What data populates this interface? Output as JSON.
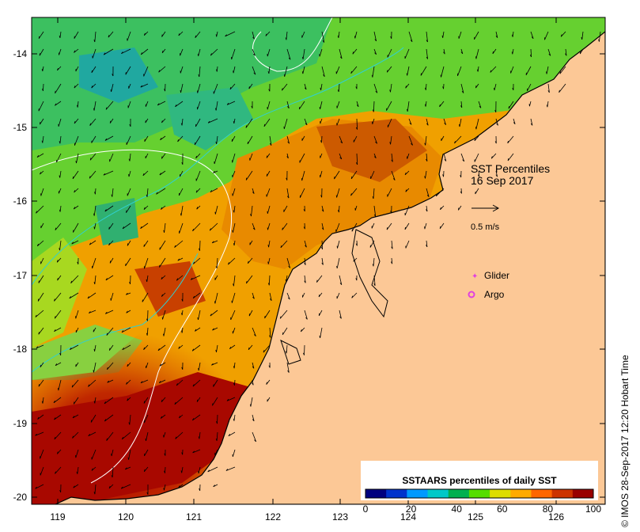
{
  "title": "SST Percentiles",
  "date": "16 Sep 2017",
  "scale_label": "0.5 m/s",
  "legend_items": [
    {
      "label": "Glider",
      "color": "#e040e0"
    },
    {
      "label": "Argo",
      "color": "#e040e0"
    }
  ],
  "colorbar": {
    "title": "SSTAARS percentiles of daily SST",
    "ticks": [
      "0",
      "20",
      "40",
      "60",
      "80",
      "100"
    ],
    "colors": [
      "#00007f",
      "#0033cc",
      "#0099ff",
      "#00c8c8",
      "#00b050",
      "#55dd00",
      "#dddd00",
      "#ffaa00",
      "#ff6600",
      "#cc3300",
      "#990000"
    ]
  },
  "axes": {
    "x_ticks": [
      "119",
      "120",
      "121",
      "122",
      "123",
      "124",
      "125",
      "126"
    ],
    "y_ticks": [
      "-14",
      "-15",
      "-16",
      "-17",
      "-18",
      "-19",
      "-20"
    ]
  },
  "credit": "© IMOS 28-Sep-2017 12:20 Hobart Time",
  "colors": {
    "land": "#fcc896",
    "ocean_warm": "#e08000",
    "ocean_hot": "#b01000",
    "ocean_mid": "#60d020"
  }
}
